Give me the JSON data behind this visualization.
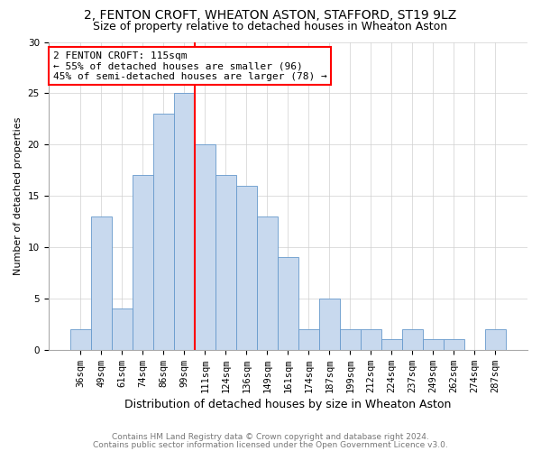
{
  "title1": "2, FENTON CROFT, WHEATON ASTON, STAFFORD, ST19 9LZ",
  "title2": "Size of property relative to detached houses in Wheaton Aston",
  "xlabel": "Distribution of detached houses by size in Wheaton Aston",
  "ylabel": "Number of detached properties",
  "categories": [
    "36sqm",
    "49sqm",
    "61sqm",
    "74sqm",
    "86sqm",
    "99sqm",
    "111sqm",
    "124sqm",
    "136sqm",
    "149sqm",
    "161sqm",
    "174sqm",
    "187sqm",
    "199sqm",
    "212sqm",
    "224sqm",
    "237sqm",
    "249sqm",
    "262sqm",
    "274sqm",
    "287sqm"
  ],
  "values": [
    2,
    13,
    4,
    17,
    23,
    25,
    20,
    17,
    16,
    13,
    9,
    2,
    5,
    2,
    2,
    1,
    2,
    1,
    1,
    0,
    2
  ],
  "bar_color": "#c8d9ee",
  "bar_edge_color": "#6699cc",
  "vline_color": "red",
  "vline_index": 5.5,
  "annotation_title": "2 FENTON CROFT: 115sqm",
  "annotation_line1": "← 55% of detached houses are smaller (96)",
  "annotation_line2": "45% of semi-detached houses are larger (78) →",
  "annotation_box_color": "white",
  "annotation_box_edge": "red",
  "ylim": [
    0,
    30
  ],
  "yticks": [
    0,
    5,
    10,
    15,
    20,
    25,
    30
  ],
  "footer1": "Contains HM Land Registry data © Crown copyright and database right 2024.",
  "footer2": "Contains public sector information licensed under the Open Government Licence v3.0.",
  "title1_fontsize": 10,
  "title2_fontsize": 9,
  "xlabel_fontsize": 9,
  "ylabel_fontsize": 8,
  "tick_fontsize": 7.5,
  "footer_fontsize": 6.5,
  "annotation_fontsize": 8
}
